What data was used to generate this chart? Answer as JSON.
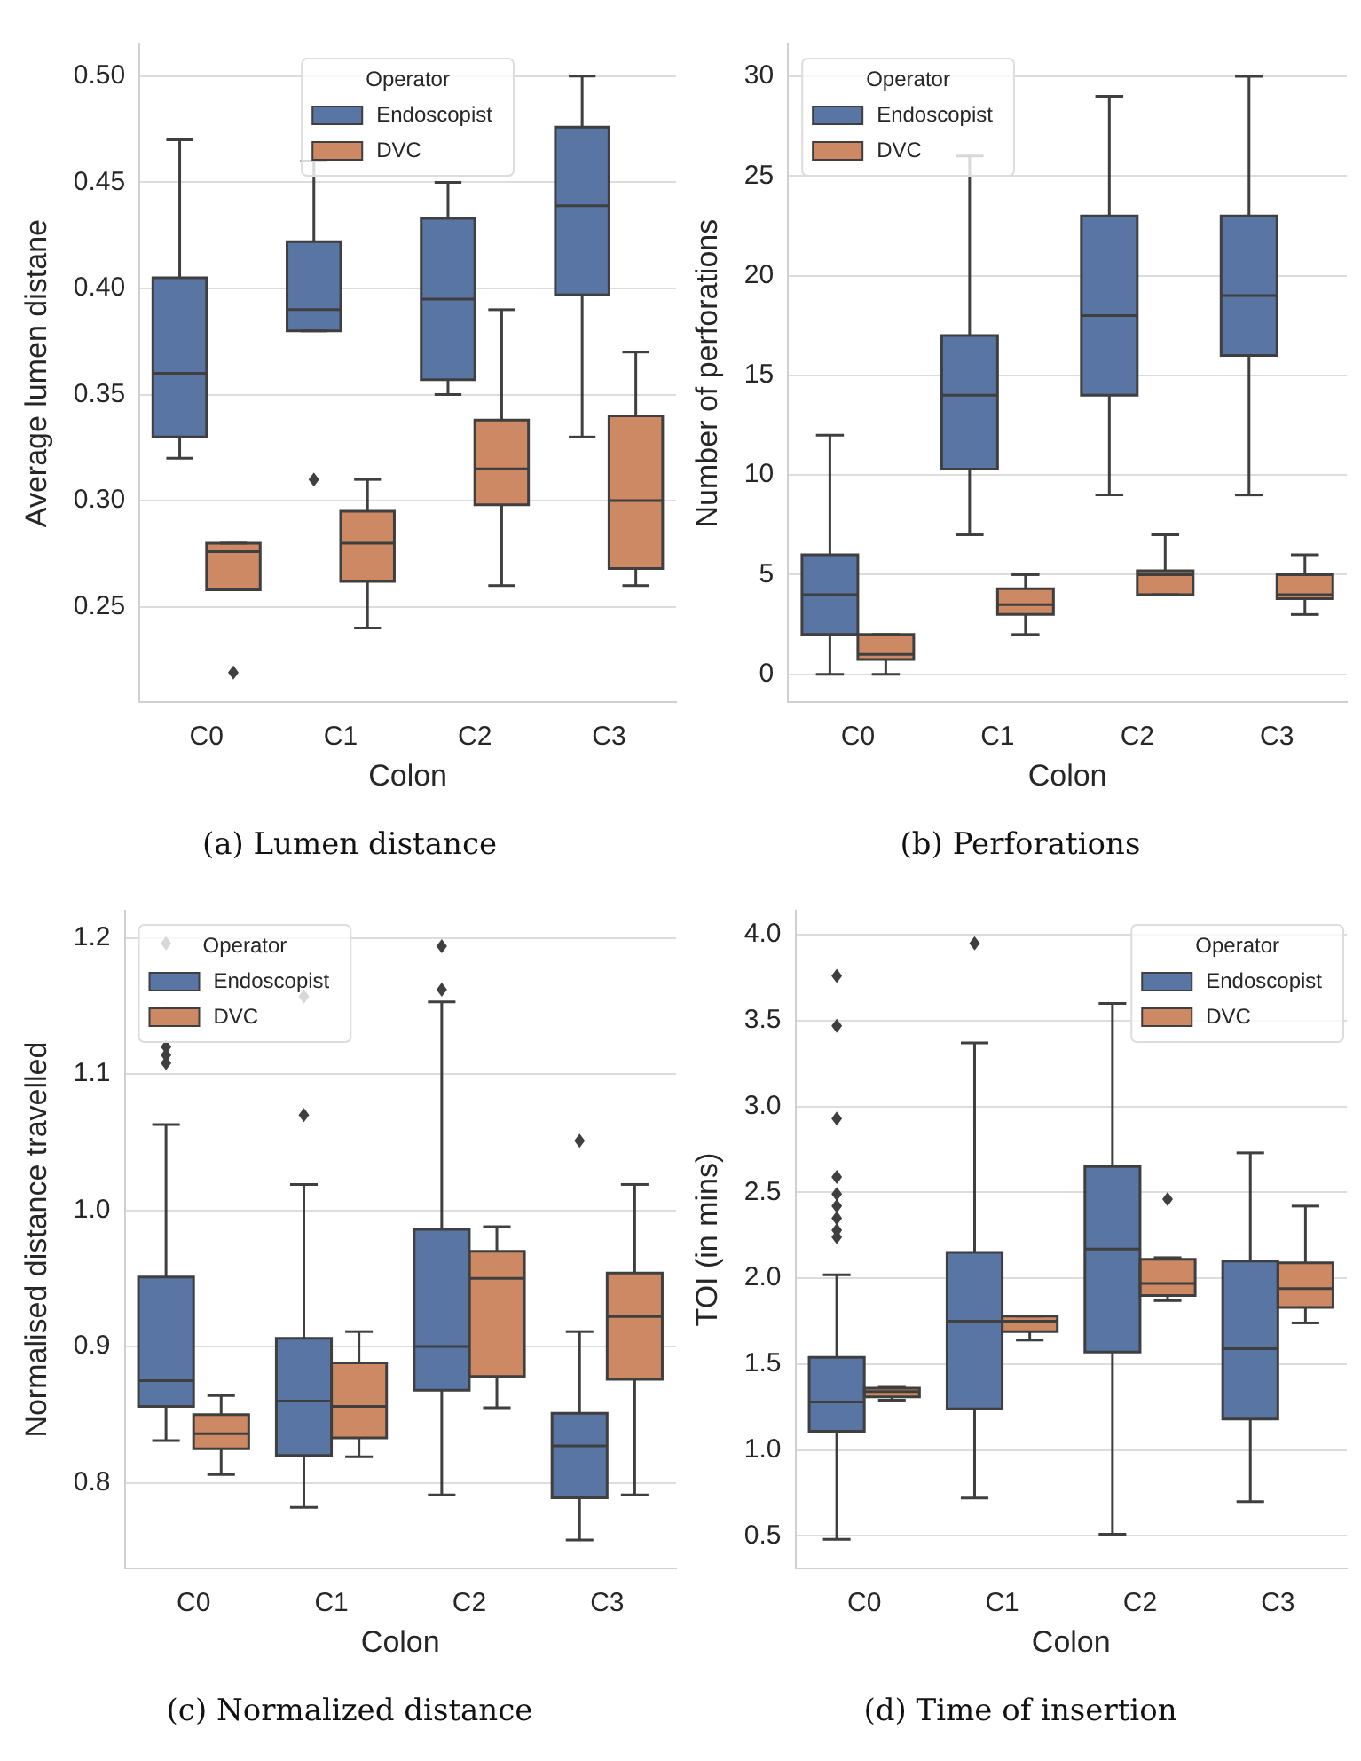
{
  "chart_data": [
    {
      "type": "box",
      "xlabel": "Colon",
      "ylabel": "Average lumen distane",
      "legend_title": "Operator",
      "legend": "top",
      "grid": "y",
      "annotations": [
        "(a) Lumen distance"
      ],
      "categories": [
        "C0",
        "C1",
        "C2",
        "C3"
      ],
      "ylim": [
        0.205,
        0.515
      ],
      "yticks": [
        0.25,
        {
          "value": 0.3,
          "label": "0.30"
        },
        0.35,
        {
          "value": 0.4,
          "label": "0.40"
        },
        0.45,
        {
          "value": 0.5,
          "label": "0.50"
        }
      ],
      "series": [
        {
          "name": "Endoscopist",
          "color": "#5975a4",
          "boxes": [
            {
              "low": 0.32,
              "q1": 0.33,
              "median": 0.36,
              "q3": 0.405,
              "high": 0.47
            },
            {
              "low": 0.38,
              "q1": 0.38,
              "median": 0.39,
              "q3": 0.422,
              "high": 0.46,
              "outliers": [
                0.31
              ]
            },
            {
              "low": 0.35,
              "q1": 0.357,
              "median": 0.395,
              "q3": 0.433,
              "high": 0.45
            },
            {
              "low": 0.33,
              "q1": 0.397,
              "median": 0.439,
              "q3": 0.476,
              "high": 0.5
            }
          ]
        },
        {
          "name": "DVC",
          "color": "#cc8963",
          "boxes": [
            {
              "low": 0.258,
              "q1": 0.258,
              "median": 0.276,
              "q3": 0.28,
              "high": 0.28,
              "outliers": [
                0.219
              ]
            },
            {
              "low": 0.24,
              "q1": 0.262,
              "median": 0.28,
              "q3": 0.295,
              "high": 0.31
            },
            {
              "low": 0.26,
              "q1": 0.298,
              "median": 0.315,
              "q3": 0.338,
              "high": 0.39
            },
            {
              "low": 0.26,
              "q1": 0.268,
              "median": 0.3,
              "q3": 0.34,
              "high": 0.37
            }
          ]
        }
      ]
    },
    {
      "type": "box",
      "xlabel": "Colon",
      "ylabel": "Number of perforations",
      "legend_title": "Operator",
      "legend": "top left",
      "grid": "y",
      "annotations": [
        "(b) Perforations"
      ],
      "categories": [
        "C0",
        "C1",
        "C2",
        "C3"
      ],
      "ylim": [
        -1.4,
        31.6
      ],
      "yticks": [
        0,
        5,
        10,
        15,
        20,
        25,
        30
      ],
      "series": [
        {
          "name": "Endoscopist",
          "color": "#5975a4",
          "boxes": [
            {
              "low": 0,
              "q1": 2,
              "median": 4,
              "q3": 6,
              "high": 12
            },
            {
              "low": 7,
              "q1": 10.3,
              "median": 14,
              "q3": 17,
              "high": 26
            },
            {
              "low": 9,
              "q1": 14,
              "median": 18,
              "q3": 23,
              "high": 29
            },
            {
              "low": 9,
              "q1": 16,
              "median": 19,
              "q3": 23,
              "high": 30
            }
          ]
        },
        {
          "name": "DVC",
          "color": "#cc8963",
          "boxes": [
            {
              "low": 0,
              "q1": 0.75,
              "median": 1,
              "q3": 2,
              "high": 2
            },
            {
              "low": 2,
              "q1": 3,
              "median": 3.5,
              "q3": 4.3,
              "high": 5
            },
            {
              "low": 4,
              "q1": 4,
              "median": 5,
              "q3": 5.2,
              "high": 7
            },
            {
              "low": 3,
              "q1": 3.8,
              "median": 4,
              "q3": 5,
              "high": 6
            }
          ]
        }
      ]
    },
    {
      "type": "box",
      "xlabel": "Colon",
      "ylabel": "Normalised distance travelled",
      "legend_title": "Operator",
      "legend": "top left",
      "grid": "y",
      "annotations": [
        "(c) Normalized distance"
      ],
      "categories": [
        "C0",
        "C1",
        "C2",
        "C3"
      ],
      "ylim": [
        0.737,
        1.22
      ],
      "yticks": [
        0.8,
        0.9,
        {
          "value": 1.0,
          "label": "1.0"
        },
        1.1,
        1.2
      ],
      "series": [
        {
          "name": "Endoscopist",
          "color": "#5975a4",
          "boxes": [
            {
              "low": 0.831,
              "q1": 0.856,
              "median": 0.875,
              "q3": 0.951,
              "high": 1.063,
              "outliers": [
                1.108,
                1.114,
                1.12,
                1.145,
                1.196
              ]
            },
            {
              "low": 0.782,
              "q1": 0.82,
              "median": 0.86,
              "q3": 0.906,
              "high": 1.019,
              "outliers": [
                1.07,
                1.157
              ]
            },
            {
              "low": 0.791,
              "q1": 0.868,
              "median": 0.9,
              "q3": 0.986,
              "high": 1.153,
              "outliers": [
                1.162,
                1.194
              ]
            },
            {
              "low": 0.758,
              "q1": 0.789,
              "median": 0.827,
              "q3": 0.851,
              "high": 0.911,
              "outliers": [
                1.051
              ]
            }
          ]
        },
        {
          "name": "DVC",
          "color": "#cc8963",
          "boxes": [
            {
              "low": 0.806,
              "q1": 0.825,
              "median": 0.836,
              "q3": 0.85,
              "high": 0.864
            },
            {
              "low": 0.819,
              "q1": 0.833,
              "median": 0.856,
              "q3": 0.888,
              "high": 0.911
            },
            {
              "low": 0.855,
              "q1": 0.878,
              "median": 0.95,
              "q3": 0.97,
              "high": 0.988
            },
            {
              "low": 0.791,
              "q1": 0.876,
              "median": 0.922,
              "q3": 0.954,
              "high": 1.019
            }
          ]
        }
      ]
    },
    {
      "type": "box",
      "xlabel": "Colon",
      "ylabel": "TOI (in mins)",
      "legend_title": "Operator",
      "legend": "top right",
      "grid": "y",
      "annotations": [
        "(d) Time of insertion"
      ],
      "categories": [
        "C0",
        "C1",
        "C2",
        "C3"
      ],
      "ylim": [
        0.31,
        4.14
      ],
      "yticks": [
        0.5,
        {
          "value": 1.0,
          "label": "1.0"
        },
        1.5,
        {
          "value": 2.0,
          "label": "2.0"
        },
        2.5,
        {
          "value": 3.0,
          "label": "3.0"
        },
        3.5,
        {
          "value": 4.0,
          "label": "4.0"
        }
      ],
      "series": [
        {
          "name": "Endoscopist",
          "color": "#5975a4",
          "boxes": [
            {
              "low": 0.48,
              "q1": 1.11,
              "median": 1.28,
              "q3": 1.54,
              "high": 2.02,
              "outliers": [
                2.24,
                2.28,
                2.35,
                2.42,
                2.49,
                2.59,
                2.93,
                3.47,
                3.76
              ]
            },
            {
              "low": 0.72,
              "q1": 1.24,
              "median": 1.75,
              "q3": 2.15,
              "high": 3.37,
              "outliers": [
                3.95
              ]
            },
            {
              "low": 0.51,
              "q1": 1.57,
              "median": 2.17,
              "q3": 2.65,
              "high": 3.6
            },
            {
              "low": 0.7,
              "q1": 1.18,
              "median": 1.59,
              "q3": 2.1,
              "high": 2.73
            }
          ]
        },
        {
          "name": "DVC",
          "color": "#cc8963",
          "boxes": [
            {
              "low": 1.29,
              "q1": 1.31,
              "median": 1.34,
              "q3": 1.36,
              "high": 1.37
            },
            {
              "low": 1.64,
              "q1": 1.69,
              "median": 1.75,
              "q3": 1.78,
              "high": 1.78
            },
            {
              "low": 1.87,
              "q1": 1.9,
              "median": 1.97,
              "q3": 2.11,
              "high": 2.12,
              "outliers": [
                2.46
              ]
            },
            {
              "low": 1.74,
              "q1": 1.83,
              "median": 1.94,
              "q3": 2.09,
              "high": 2.42
            }
          ]
        }
      ]
    }
  ]
}
